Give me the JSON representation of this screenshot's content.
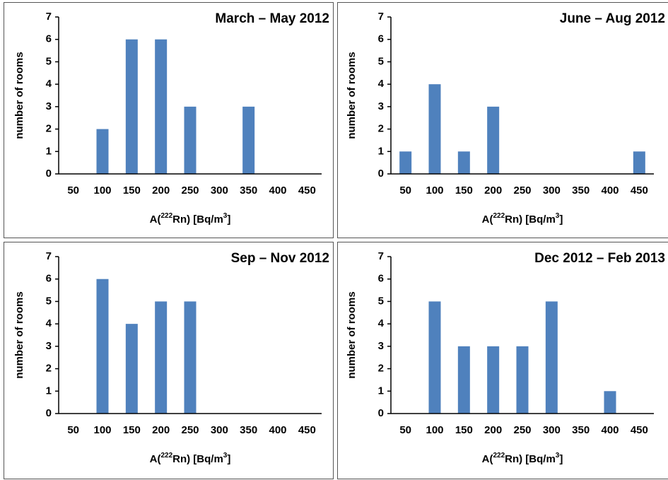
{
  "chart_data": [
    {
      "type": "bar",
      "title": "March – May 2012",
      "y_label": "number of rooms",
      "x_label_parts": [
        "A(",
        "222",
        "Rn) [Bq/m",
        "3",
        "]"
      ],
      "categories": [
        "50",
        "100",
        "150",
        "200",
        "250",
        "300",
        "350",
        "400",
        "450"
      ],
      "values": [
        0,
        2,
        6,
        6,
        3,
        0,
        3,
        0,
        0
      ],
      "color": "#4f81bd",
      "ylim": [
        0,
        7
      ],
      "yticks": [
        0,
        1,
        2,
        3,
        4,
        5,
        6,
        7
      ],
      "grid": false
    },
    {
      "type": "bar",
      "title": "June – Aug 2012",
      "y_label": "number of rooms",
      "x_label_parts": [
        "A(",
        "222",
        "Rn) [Bq/m",
        "3",
        "]"
      ],
      "categories": [
        "50",
        "100",
        "150",
        "200",
        "250",
        "300",
        "350",
        "400",
        "450"
      ],
      "values": [
        1,
        4,
        1,
        3,
        0,
        0,
        0,
        0,
        1
      ],
      "color": "#4f81bd",
      "ylim": [
        0,
        7
      ],
      "yticks": [
        0,
        1,
        2,
        3,
        4,
        5,
        6,
        7
      ],
      "grid": false
    },
    {
      "type": "bar",
      "title": "Sep – Nov 2012",
      "y_label": "number of rooms",
      "x_label_parts": [
        "A(",
        "222",
        "Rn) [Bq/m",
        "3",
        "]"
      ],
      "categories": [
        "50",
        "100",
        "150",
        "200",
        "250",
        "300",
        "350",
        "400",
        "450"
      ],
      "values": [
        0,
        6,
        4,
        5,
        5,
        0,
        0,
        0,
        0
      ],
      "color": "#4f81bd",
      "ylim": [
        0,
        7
      ],
      "yticks": [
        0,
        1,
        2,
        3,
        4,
        5,
        6,
        7
      ],
      "grid": false
    },
    {
      "type": "bar",
      "title": "Dec 2012 – Feb 2013",
      "y_label": "number of rooms",
      "x_label_parts": [
        "A(",
        "222",
        "Rn) [Bq/m",
        "3",
        "]"
      ],
      "categories": [
        "50",
        "100",
        "150",
        "200",
        "250",
        "300",
        "350",
        "400",
        "450"
      ],
      "values": [
        0,
        5,
        3,
        3,
        3,
        5,
        0,
        1,
        0
      ],
      "color": "#4f81bd",
      "ylim": [
        0,
        7
      ],
      "yticks": [
        0,
        1,
        2,
        3,
        4,
        5,
        6,
        7
      ],
      "grid": false
    }
  ]
}
